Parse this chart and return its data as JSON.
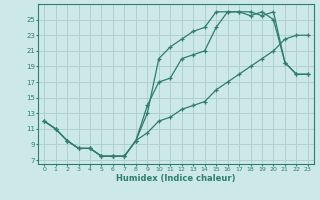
{
  "xlabel": "Humidex (Indice chaleur)",
  "bg_color": "#cde8e8",
  "grid_color": "#b0d0d0",
  "line_color": "#2e7d6e",
  "xlim": [
    -0.5,
    23.5
  ],
  "ylim": [
    6.5,
    27
  ],
  "xticks": [
    0,
    1,
    2,
    3,
    4,
    5,
    6,
    7,
    8,
    9,
    10,
    11,
    12,
    13,
    14,
    15,
    16,
    17,
    18,
    19,
    20,
    21,
    22,
    23
  ],
  "yticks": [
    7,
    9,
    11,
    13,
    15,
    17,
    19,
    21,
    23,
    25
  ],
  "line1_x": [
    0,
    1,
    2,
    3,
    4,
    5,
    6,
    7,
    8,
    9,
    10,
    11,
    12,
    13,
    14,
    15,
    16,
    17,
    18,
    19,
    20,
    21,
    22,
    23
  ],
  "line1_y": [
    12,
    11,
    9.5,
    8.5,
    8.5,
    7.5,
    7.5,
    7.5,
    9.5,
    10.5,
    12,
    12.5,
    13.5,
    14,
    14.5,
    16,
    17,
    18,
    19,
    20,
    21,
    22.5,
    23,
    23
  ],
  "line2_x": [
    0,
    1,
    2,
    3,
    4,
    5,
    6,
    7,
    8,
    9,
    10,
    11,
    12,
    13,
    14,
    15,
    16,
    17,
    18,
    19,
    20,
    21,
    22,
    23
  ],
  "line2_y": [
    12,
    11,
    9.5,
    8.5,
    8.5,
    7.5,
    7.5,
    7.5,
    9.5,
    14,
    17,
    17.5,
    20,
    20.5,
    21,
    24,
    26,
    26,
    26,
    25.5,
    26,
    19.5,
    18,
    18
  ],
  "line3_x": [
    0,
    1,
    2,
    3,
    4,
    5,
    6,
    7,
    8,
    9,
    10,
    11,
    12,
    13,
    14,
    15,
    16,
    17,
    18,
    19,
    20,
    21,
    22,
    23
  ],
  "line3_y": [
    12,
    11,
    9.5,
    8.5,
    8.5,
    7.5,
    7.5,
    7.5,
    9.5,
    13,
    20,
    21.5,
    22.5,
    23.5,
    24,
    26,
    26,
    26,
    25.5,
    26,
    25,
    19.5,
    18,
    18
  ]
}
